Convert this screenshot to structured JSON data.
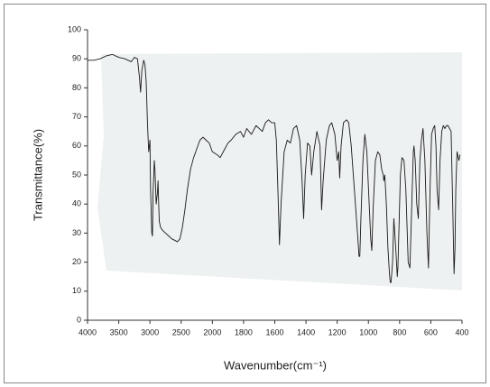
{
  "chart_data": {
    "type": "line",
    "color": "#1a1a1a",
    "y_label": "Transmittance(%)",
    "x_label": "Wavenumber(cm⁻¹)",
    "x": [
      4000,
      3900,
      3800,
      3700,
      3600,
      3500,
      3400,
      3300,
      3250,
      3200,
      3170,
      3150,
      3130,
      3100,
      3080,
      3060,
      3040,
      3020,
      3000,
      2990,
      2970,
      2960,
      2950,
      2930,
      2920,
      2900,
      2880,
      2870,
      2860,
      2850,
      2830,
      2800,
      2750,
      2700,
      2650,
      2600,
      2560,
      2520,
      2480,
      2440,
      2400,
      2350,
      2300,
      2250,
      2200,
      2150,
      2100,
      2050,
      2000,
      1970,
      1950,
      1920,
      1900,
      1880,
      1850,
      1820,
      1800,
      1780,
      1750,
      1720,
      1700,
      1680,
      1660,
      1640,
      1620,
      1600,
      1590,
      1580,
      1570,
      1560,
      1540,
      1520,
      1500,
      1480,
      1460,
      1440,
      1425,
      1415,
      1405,
      1390,
      1375,
      1364,
      1350,
      1330,
      1310,
      1300,
      1290,
      1270,
      1250,
      1235,
      1215,
      1200,
      1190,
      1184,
      1175,
      1160,
      1140,
      1126,
      1110,
      1090,
      1070,
      1060,
      1055,
      1048,
      1035,
      1023,
      1010,
      995,
      985,
      978,
      970,
      955,
      940,
      927,
      915,
      905,
      901,
      895,
      885,
      875,
      865,
      860,
      855,
      845,
      837,
      825,
      815,
      811,
      805,
      795,
      785,
      772,
      760,
      745,
      734,
      722,
      712,
      708,
      700,
      690,
      680,
      670,
      660,
      650,
      638,
      625,
      615,
      605,
      595,
      585,
      575,
      567,
      560,
      550,
      541,
      530,
      520,
      510,
      500,
      490,
      480,
      470,
      460,
      451,
      445,
      440,
      432,
      420,
      413
    ],
    "values": [
      89.5,
      89.5,
      90,
      91,
      91.5,
      90.5,
      90,
      89,
      90.5,
      90,
      84,
      78.5,
      86,
      89.5,
      88,
      82,
      68,
      58,
      62,
      45,
      30,
      29,
      44,
      55,
      52,
      40,
      44,
      48,
      40,
      34,
      32,
      31,
      30,
      29,
      28,
      27.5,
      27,
      28,
      32,
      38,
      45,
      52,
      56,
      59,
      62,
      63,
      62,
      61,
      58,
      57,
      56,
      59,
      61,
      62,
      64,
      65,
      63,
      66,
      64,
      67,
      66,
      65,
      68,
      69,
      68,
      68,
      62,
      45,
      26,
      40,
      58,
      62,
      61,
      66,
      67,
      62,
      48,
      35,
      50,
      61,
      60,
      50,
      58,
      65,
      60,
      38,
      48,
      62,
      67,
      68,
      64,
      55,
      58,
      49,
      60,
      68,
      69,
      68,
      60,
      45,
      30,
      22,
      22,
      35,
      55,
      64,
      58,
      40,
      28,
      24,
      38,
      55,
      58,
      57,
      52,
      50,
      48,
      50,
      40,
      25,
      16,
      13,
      13,
      20,
      35,
      25,
      15,
      18,
      30,
      50,
      56,
      55,
      45,
      20,
      18,
      40,
      58,
      60,
      55,
      40,
      35,
      55,
      62,
      66,
      55,
      30,
      18,
      45,
      64,
      66,
      67,
      60,
      45,
      38,
      55,
      65,
      67,
      66,
      67,
      67,
      66,
      65,
      40,
      16,
      25,
      45,
      58,
      55,
      57
    ],
    "xlim": [
      4000,
      400
    ],
    "ylim": [
      0,
      100
    ],
    "xticks": [
      4000,
      3500,
      3000,
      2500,
      2000,
      1800,
      1600,
      1400,
      1200,
      1000,
      800,
      600,
      400
    ],
    "yticks": [
      0,
      10,
      20,
      30,
      40,
      50,
      60,
      70,
      80,
      90,
      100
    ]
  }
}
